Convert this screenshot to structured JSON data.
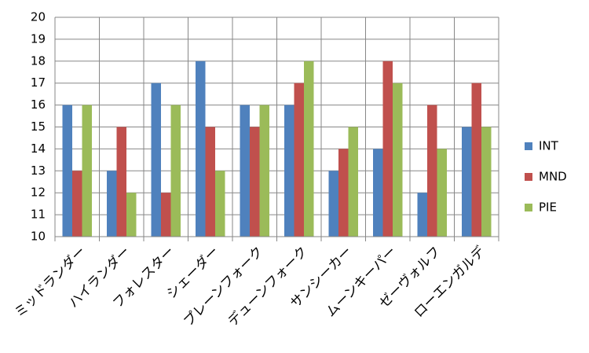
{
  "chart_data": {
    "type": "bar",
    "categories": [
      "ミッドランダー",
      "ハイランダー",
      "フォレスター",
      "シェーダー",
      "プレーンフォーク",
      "デューンフォーク",
      "サンシーカー",
      "ムーンキーパー",
      "ゼーヴォルフ",
      "ローエンガルデ"
    ],
    "series": [
      {
        "name": "INT",
        "color": "#4f81bd",
        "values": [
          16,
          13,
          17,
          18,
          16,
          16,
          13,
          14,
          12,
          15
        ]
      },
      {
        "name": "MND",
        "color": "#c0504d",
        "values": [
          13,
          15,
          12,
          15,
          15,
          17,
          14,
          18,
          16,
          17
        ]
      },
      {
        "name": "PIE",
        "color": "#9bbb59",
        "values": [
          16,
          12,
          16,
          13,
          16,
          18,
          15,
          17,
          14,
          15
        ]
      }
    ],
    "ylim": [
      10,
      20
    ],
    "yticks": [
      10,
      11,
      12,
      13,
      14,
      15,
      16,
      17,
      18,
      19,
      20
    ],
    "grid": true,
    "legend": "right"
  }
}
